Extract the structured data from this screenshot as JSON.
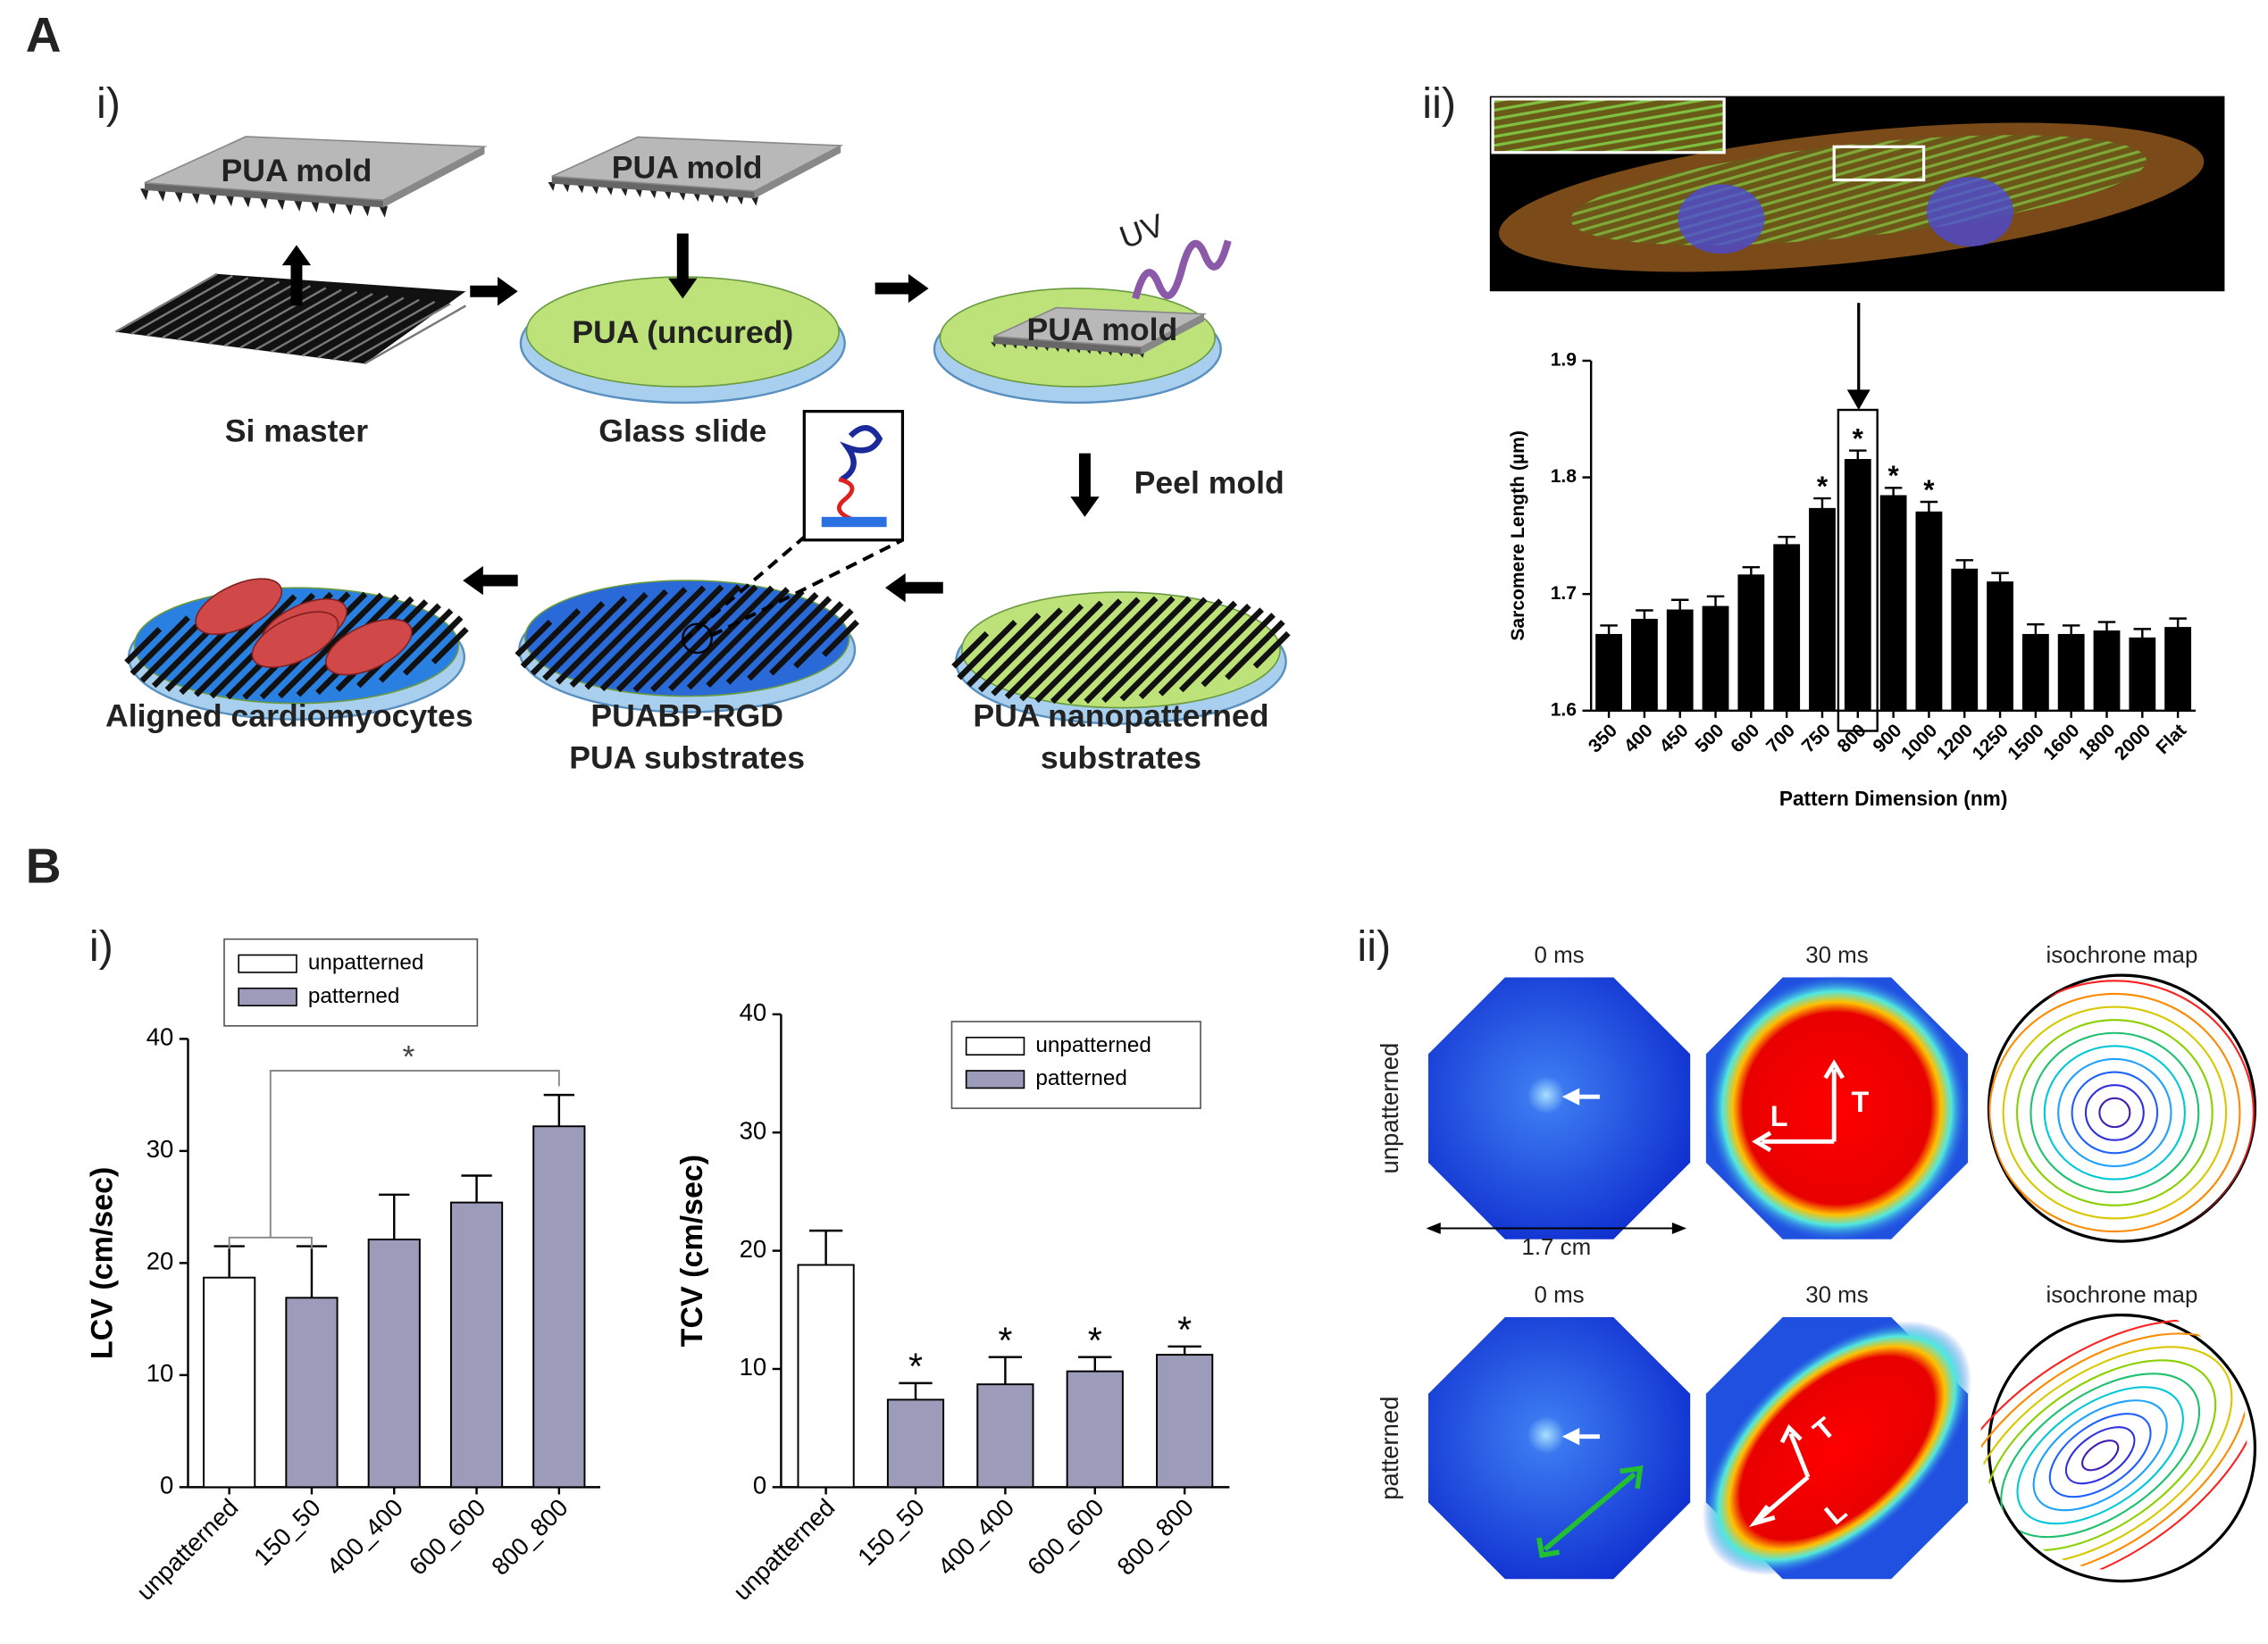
{
  "figure": {
    "panel_labels": [
      "A",
      "B"
    ],
    "sub_labels": [
      "i)",
      "ii)",
      "i)",
      "ii)"
    ]
  },
  "fabrication": {
    "mold": "PUA mold",
    "si_master": "Si master",
    "uncured": "PUA (uncured)",
    "glass": "Glass slide",
    "uv": "UV",
    "peel": "Peel mold",
    "nanopatterned": [
      "PUA nanopatterned",
      "substrates"
    ],
    "rgd": [
      "PUABP-RGD",
      "PUA substrates"
    ],
    "aligned": "Aligned cardiomyocytes"
  },
  "maps": {
    "rows": [
      "unpatterned",
      "patterned"
    ],
    "columns": [
      "0 ms",
      "30 ms",
      "isochrone map"
    ],
    "scale": "1.7 cm",
    "directions": [
      "L",
      "T"
    ]
  },
  "chart_data": [
    {
      "type": "bar",
      "ylabel": "Sarcomere Length (µm)",
      "xlabel": "Pattern Dimension (nm)",
      "categories": [
        "350",
        "400",
        "450",
        "500",
        "600",
        "700",
        "750",
        "800",
        "900",
        "1000",
        "1200",
        "1250",
        "1500",
        "1600",
        "1800",
        "2000",
        "Flat"
      ],
      "values": [
        1.665,
        1.678,
        1.686,
        1.689,
        1.716,
        1.742,
        1.773,
        1.815,
        1.784,
        1.77,
        1.721,
        1.71,
        1.665,
        1.665,
        1.668,
        1.662,
        1.671
      ],
      "errors": [
        0.008,
        0.008,
        0.009,
        0.009,
        0.007,
        0.007,
        0.009,
        0.008,
        0.007,
        0.009,
        0.008,
        0.008,
        0.009,
        0.008,
        0.008,
        0.008,
        0.008
      ],
      "significance": [
        null,
        null,
        null,
        null,
        null,
        null,
        "*",
        "*",
        "*",
        "*",
        null,
        null,
        null,
        null,
        null,
        null,
        null
      ],
      "color": "#000000",
      "ylim": [
        1.6,
        1.9
      ],
      "yticks": [
        1.6,
        1.7,
        1.8,
        1.9
      ]
    },
    {
      "type": "bar",
      "ylabel": "LCV (cm/sec)",
      "categories": [
        "unpatterned",
        "150_50",
        "400_400",
        "600_600",
        "800_800"
      ],
      "series": [
        {
          "name": "unpatterned",
          "color": "#ffffff",
          "values": [
            18.7,
            null,
            null,
            null,
            null
          ]
        },
        {
          "name": "patterned",
          "color": "#9c9cba",
          "values": [
            null,
            16.9,
            22.1,
            25.4,
            32.2
          ]
        }
      ],
      "errors": [
        2.8,
        4.6,
        4.0,
        2.4,
        2.8
      ],
      "annotation": "*",
      "ylim": [
        0,
        40
      ],
      "yticks": [
        0,
        10,
        20,
        30,
        40
      ]
    },
    {
      "type": "bar",
      "ylabel": "TCV (cm/sec)",
      "categories": [
        "unpatterned",
        "150_50",
        "400_400",
        "600_600",
        "800_800"
      ],
      "series": [
        {
          "name": "unpatterned",
          "color": "#ffffff",
          "values": [
            18.8,
            null,
            null,
            null,
            null
          ]
        },
        {
          "name": "patterned",
          "color": "#9c9cba",
          "values": [
            null,
            7.4,
            8.7,
            9.8,
            11.2
          ]
        }
      ],
      "errors": [
        2.9,
        1.4,
        2.3,
        1.2,
        0.7
      ],
      "significance": [
        null,
        "*",
        "*",
        "*",
        "*"
      ],
      "ylim": [
        0,
        40
      ],
      "yticks": [
        0,
        10,
        20,
        30,
        40
      ]
    }
  ]
}
